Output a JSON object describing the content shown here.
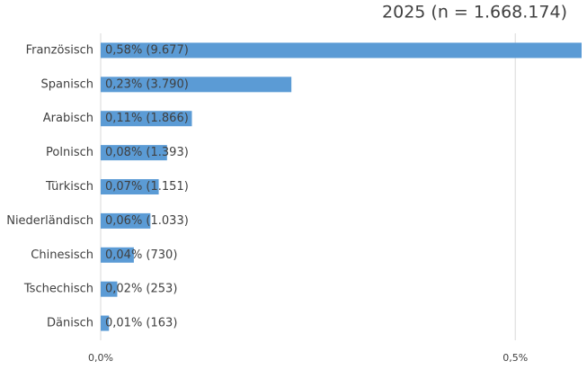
{
  "chart_data": {
    "type": "bar",
    "orientation": "horizontal",
    "title": "2025 (n = 1.668.174)",
    "categories": [
      "Französisch",
      "Spanisch",
      "Arabisch",
      "Polnisch",
      "Türkisch",
      "Niederländisch",
      "Chinesisch",
      "Tschechisch",
      "Dänisch"
    ],
    "values": [
      0.58,
      0.23,
      0.11,
      0.08,
      0.07,
      0.06,
      0.04,
      0.02,
      0.01
    ],
    "value_labels": [
      "0,58% (9.677)",
      "0,23% (3.790)",
      "0,11% (1.866)",
      "0,08% (1.393)",
      "0,07% (1.151)",
      "0,06% (1.033)",
      "0,04% (730)",
      "0,02% (253)",
      "0,01% (163)"
    ],
    "color": "#5b9bd5",
    "xlim": [
      0,
      0.58
    ],
    "xticks": [
      {
        "value": 0,
        "label": "0,0%"
      },
      {
        "value": 0.5,
        "label": "0,5%"
      }
    ],
    "grid": true
  }
}
